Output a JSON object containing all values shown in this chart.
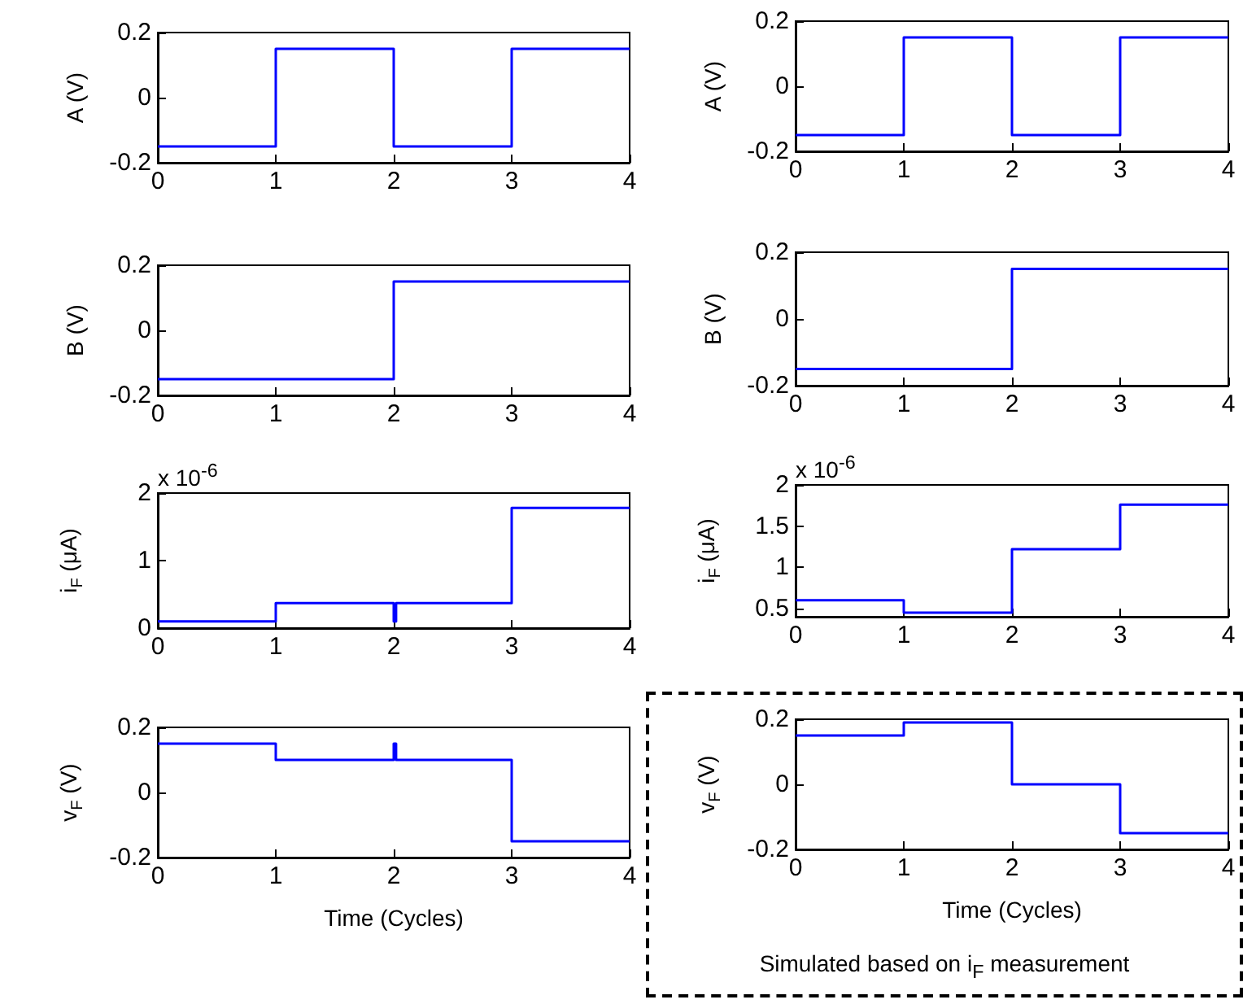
{
  "chart_data": [
    {
      "type": "step",
      "x": [
        0,
        1,
        2,
        3,
        4
      ],
      "values": [
        -0.15,
        0.15,
        -0.15,
        0.15,
        0.15
      ],
      "color": "#0000ff",
      "xlim": [
        0,
        4
      ],
      "xticks": [
        0,
        1,
        2,
        3,
        4
      ],
      "ylim": [
        -0.2,
        0.2
      ],
      "yticks": [
        -0.2,
        0,
        0.2
      ],
      "ylabel": "A (V)"
    },
    {
      "type": "step",
      "x": [
        0,
        1,
        2,
        3,
        4
      ],
      "values": [
        -0.15,
        0.15,
        -0.15,
        0.15,
        0.15
      ],
      "color": "#0000ff",
      "xlim": [
        0,
        4
      ],
      "xticks": [
        0,
        1,
        2,
        3,
        4
      ],
      "ylim": [
        -0.2,
        0.2
      ],
      "yticks": [
        -0.2,
        0,
        0.2
      ],
      "ylabel": "A (V)"
    },
    {
      "type": "step",
      "x": [
        0,
        2,
        4
      ],
      "values": [
        -0.15,
        0.15,
        0.15
      ],
      "color": "#0000ff",
      "xlim": [
        0,
        4
      ],
      "xticks": [
        0,
        1,
        2,
        3,
        4
      ],
      "ylim": [
        -0.2,
        0.2
      ],
      "yticks": [
        -0.2,
        0,
        0.2
      ],
      "ylabel": "B (V)"
    },
    {
      "type": "step",
      "x": [
        0,
        2,
        4
      ],
      "values": [
        -0.15,
        0.15,
        0.15
      ],
      "color": "#0000ff",
      "xlim": [
        0,
        4
      ],
      "xticks": [
        0,
        1,
        2,
        3,
        4
      ],
      "ylim": [
        -0.2,
        0.2
      ],
      "yticks": [
        -0.2,
        0,
        0.2
      ],
      "ylabel": "B (V)"
    },
    {
      "type": "step",
      "x": [
        0,
        1,
        2,
        2.02,
        3,
        4
      ],
      "values": [
        0.1,
        0.37,
        0.1,
        0.37,
        1.78,
        1.78
      ],
      "color": "#0000ff",
      "xlim": [
        0,
        4
      ],
      "xticks": [
        0,
        1,
        2,
        3,
        4
      ],
      "ylim": [
        0,
        2
      ],
      "yticks": [
        0,
        1,
        2
      ],
      "ylabel": "i$_{F}$ (μA)",
      "annotations": [
        "x 10$^{-6}$"
      ]
    },
    {
      "type": "step",
      "x": [
        0,
        1,
        2,
        3,
        4
      ],
      "values": [
        0.6,
        0.45,
        1.22,
        1.76,
        1.76
      ],
      "color": "#0000ff",
      "xlim": [
        0,
        4
      ],
      "xticks": [
        0,
        1,
        2,
        3,
        4
      ],
      "ylim": [
        0.4,
        2
      ],
      "yticks": [
        0.5,
        1,
        1.5,
        2
      ],
      "ylabel": "i$_{F}$ (μA)",
      "annotations": [
        "x 10$^{-6}$"
      ]
    },
    {
      "type": "step",
      "x": [
        0,
        1,
        2,
        2.02,
        3,
        4
      ],
      "values": [
        0.15,
        0.1,
        0.15,
        0.1,
        -0.15,
        -0.15
      ],
      "color": "#0000ff",
      "xlim": [
        0,
        4
      ],
      "xticks": [
        0,
        1,
        2,
        3,
        4
      ],
      "ylim": [
        -0.2,
        0.2
      ],
      "yticks": [
        -0.2,
        0,
        0.2
      ],
      "ylabel": "v$_{F}$ (V)",
      "xlabel": "Time (Cycles)"
    },
    {
      "type": "step",
      "x": [
        0,
        1,
        2,
        3,
        4
      ],
      "values": [
        0.15,
        0.19,
        0,
        -0.15,
        -0.15
      ],
      "color": "#0000ff",
      "xlim": [
        0,
        4
      ],
      "xticks": [
        0,
        1,
        2,
        3,
        4
      ],
      "ylim": [
        -0.2,
        0.2
      ],
      "yticks": [
        -0.2,
        0,
        0.2
      ],
      "ylabel": "v$_{F}$ (V)",
      "xlabel": "Time (Cycles)",
      "annotations": [
        "Simulated based on i$_{F}$ measurement"
      ]
    }
  ]
}
